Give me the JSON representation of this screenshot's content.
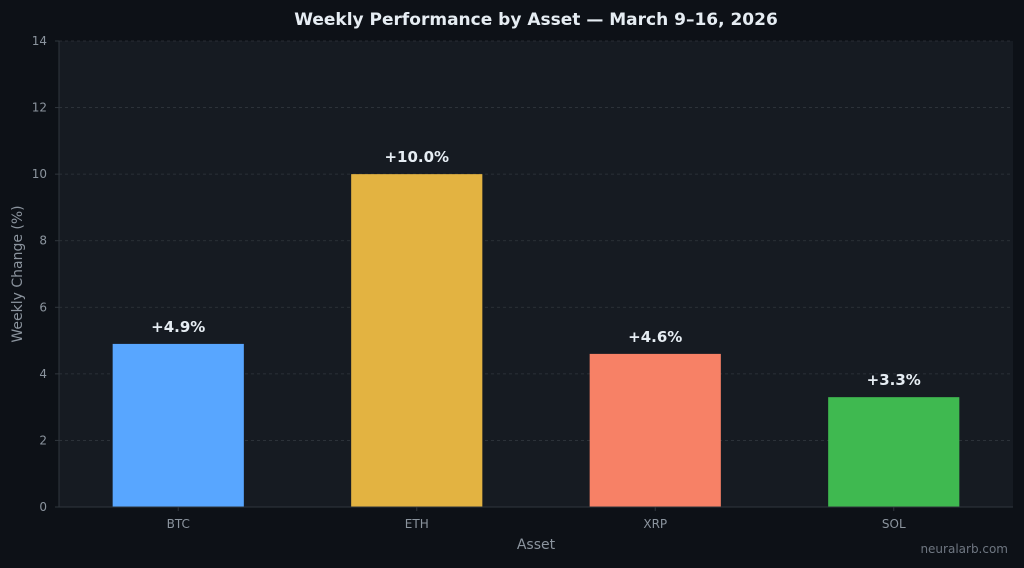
{
  "chart_data": {
    "type": "bar",
    "title": "Weekly Performance by Asset — March 9–16, 2026",
    "xlabel": "Asset",
    "ylabel": "Weekly Change (%)",
    "categories": [
      "BTC",
      "ETH",
      "XRP",
      "SOL"
    ],
    "values": [
      4.9,
      10.0,
      4.6,
      3.3
    ],
    "data_labels": [
      "+4.9%",
      "+10.0%",
      "+4.6%",
      "+3.3%"
    ],
    "colors": [
      "#58a6ff",
      "#e3b341",
      "#f78166",
      "#3fb950"
    ],
    "ylim": [
      0,
      14
    ],
    "yticks": [
      0,
      2,
      4,
      6,
      8,
      10,
      12,
      14
    ],
    "grid": true,
    "legend": "none"
  },
  "watermark": "neuralarb.com",
  "theme": {
    "background": "#0d1117",
    "plot_background": "#161b22",
    "grid_color": "#30363d",
    "text_color": "#e6edf3",
    "muted_text": "#8b949e"
  }
}
